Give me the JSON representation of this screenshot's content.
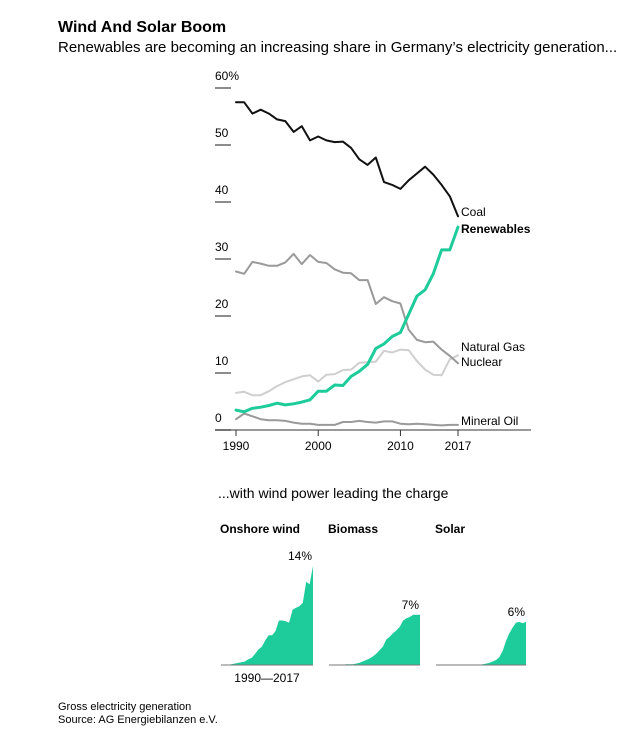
{
  "header": {
    "title": "Wind And Solar Boom",
    "subtitle": "Renewables are becoming an increasing share in Germany’s electricity generation..."
  },
  "colors": {
    "coal": "#111111",
    "renewables": "#1dcc9a",
    "gas": "#cfcfcf",
    "nuclear": "#9a9a9a",
    "oil": "#9a9a9a",
    "axis": "#333333"
  },
  "chart_data": [
    {
      "type": "line",
      "title": "Wind And Solar Boom",
      "ylim": [
        0,
        60
      ],
      "xlim": [
        1990,
        2017
      ],
      "y_ticks": [
        "60%",
        "50",
        "40",
        "30",
        "20",
        "10",
        "0"
      ],
      "y_tick_values": [
        60,
        50,
        40,
        30,
        20,
        10,
        0
      ],
      "x_ticks": [
        1990,
        2000,
        2010,
        2017
      ],
      "x": [
        1990,
        1991,
        1992,
        1993,
        1994,
        1995,
        1996,
        1997,
        1998,
        1999,
        2000,
        2001,
        2002,
        2003,
        2004,
        2005,
        2006,
        2007,
        2008,
        2009,
        2010,
        2011,
        2012,
        2013,
        2014,
        2015,
        2016,
        2017
      ],
      "series": [
        {
          "name": "Coal",
          "key": "coal",
          "bold": false,
          "values": [
            57.5,
            57.5,
            55.5,
            56.2,
            55.5,
            54.5,
            54.2,
            52.3,
            53.3,
            50.8,
            51.5,
            50.8,
            50.5,
            50.6,
            49.5,
            47.5,
            46.5,
            47.8,
            43.5,
            43,
            42.3,
            43.8,
            45,
            46.2,
            44.8,
            43,
            41,
            37.5
          ]
        },
        {
          "name": "Renewables",
          "key": "renewables",
          "bold": true,
          "values": [
            3.5,
            3.2,
            3.8,
            4,
            4.3,
            4.7,
            4.4,
            4.6,
            4.9,
            5.3,
            6.8,
            6.8,
            7.9,
            7.8,
            9.4,
            10.3,
            11.5,
            14.3,
            15.1,
            16.4,
            17.1,
            20.3,
            23.5,
            24.6,
            27.4,
            31.6,
            31.6,
            35.6
          ]
        },
        {
          "name": "Natural Gas",
          "key": "gas",
          "bold": false,
          "values": [
            6.5,
            6.7,
            6.1,
            6.1,
            6.8,
            7.7,
            8.4,
            8.9,
            9.4,
            9.6,
            8.5,
            9.7,
            9.8,
            10.5,
            10.6,
            11.8,
            11.9,
            12,
            13.9,
            13.6,
            14.1,
            14,
            12.1,
            10.6,
            9.7,
            9.6,
            12.4,
            13.1
          ]
        },
        {
          "name": "Nuclear",
          "key": "nuclear",
          "bold": false,
          "values": [
            27.8,
            27.4,
            29.5,
            29.2,
            28.8,
            28.8,
            29.4,
            30.9,
            29.1,
            30.7,
            29.5,
            29.3,
            28.2,
            27.6,
            27.5,
            26.3,
            26.3,
            22.1,
            23.3,
            22.6,
            22.2,
            17.6,
            15.8,
            15.4,
            15.5,
            14.1,
            13,
            11.7
          ]
        },
        {
          "name": "Mineral Oil",
          "key": "oil",
          "bold": false,
          "values": [
            1.9,
            2.9,
            2.4,
            1.9,
            1.7,
            1.7,
            1.6,
            1.3,
            1.1,
            1.1,
            0.9,
            0.9,
            0.9,
            1.4,
            1.4,
            1.6,
            1.4,
            1.3,
            1.5,
            1.5,
            1.1,
            1,
            1.1,
            1,
            0.9,
            0.8,
            0.9,
            0.9
          ]
        }
      ]
    },
    {
      "type": "area",
      "title": "Onshore wind",
      "x_range_label": "1990—2017",
      "end_label": "14%",
      "ylim": [
        0,
        14
      ],
      "values": [
        0,
        0,
        0,
        0.1,
        0.2,
        0.3,
        0.4,
        0.5,
        0.8,
        1,
        1.6,
        2.2,
        2.6,
        3.5,
        4.2,
        4.2,
        4.8,
        6.3,
        6.3,
        6.2,
        6,
        7.8,
        8.1,
        8.3,
        8.8,
        11.8,
        11.4,
        14
      ]
    },
    {
      "type": "area",
      "title": "Biomass",
      "end_label": "7%",
      "ylim": [
        0,
        14
      ],
      "values": [
        0,
        0,
        0,
        0,
        0,
        0.1,
        0.1,
        0.1,
        0.2,
        0.3,
        0.5,
        0.7,
        0.9,
        1.2,
        1.6,
        2.1,
        2.6,
        3.6,
        4,
        4.5,
        4.9,
        5.4,
        6.3,
        6.6,
        6.8,
        7.1,
        7.1,
        7.1
      ]
    },
    {
      "type": "area",
      "title": "Solar",
      "end_label": "6%",
      "ylim": [
        0,
        14
      ],
      "values": [
        0,
        0,
        0,
        0,
        0,
        0,
        0,
        0,
        0,
        0,
        0,
        0,
        0,
        0,
        0.1,
        0.2,
        0.3,
        0.5,
        0.7,
        1.1,
        2,
        3.4,
        4.5,
        5.3,
        6,
        6.1,
        5.9,
        6.1
      ]
    }
  ],
  "small_multiples": {
    "heading": "...with wind power leading the charge"
  },
  "footer": {
    "note": "Gross electricity generation",
    "source": "Source: AG Energiebilanzen e.V."
  }
}
